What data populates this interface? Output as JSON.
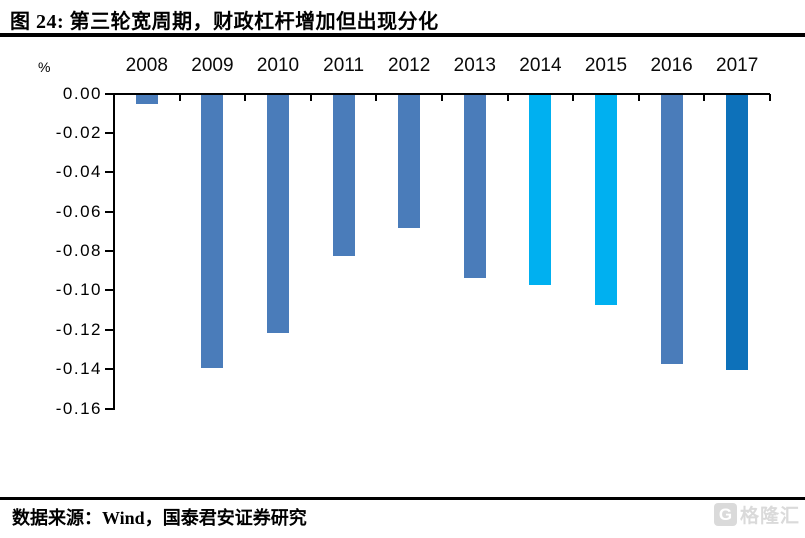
{
  "page": {
    "title": "图 24: 第三轮宽周期，财政杠杆增加但出现分化",
    "source": "数据来源：Wind，国泰君安证券研究",
    "watermark": {
      "logo_letter": "G",
      "brand": "格隆汇"
    }
  },
  "chart_data": {
    "type": "bar",
    "title": "第三轮宽周期，财政杠杆增加但出现分化",
    "unit_label": "%",
    "categories": [
      "2008",
      "2009",
      "2010",
      "2011",
      "2012",
      "2013",
      "2014",
      "2015",
      "2016",
      "2017"
    ],
    "values": [
      -0.005,
      -0.139,
      -0.121,
      -0.082,
      -0.068,
      -0.093,
      -0.097,
      -0.107,
      -0.137,
      -0.14
    ],
    "bar_colors": [
      "#4a7cba",
      "#4a7cba",
      "#4a7cba",
      "#4a7cba",
      "#4a7cba",
      "#4a7cba",
      "#00b0f0",
      "#00b0f0",
      "#4a7cba",
      "#0d71ba"
    ],
    "y_ticks": [
      "0.00",
      "-0.02",
      "-0.04",
      "-0.06",
      "-0.08",
      "-0.10",
      "-0.12",
      "-0.14",
      "-0.16"
    ],
    "ylim": [
      -0.16,
      0
    ],
    "xlabel": "",
    "ylabel": "%",
    "x_axis_position": "top",
    "grid": false,
    "legend": "none",
    "axis_color": "#000000"
  }
}
